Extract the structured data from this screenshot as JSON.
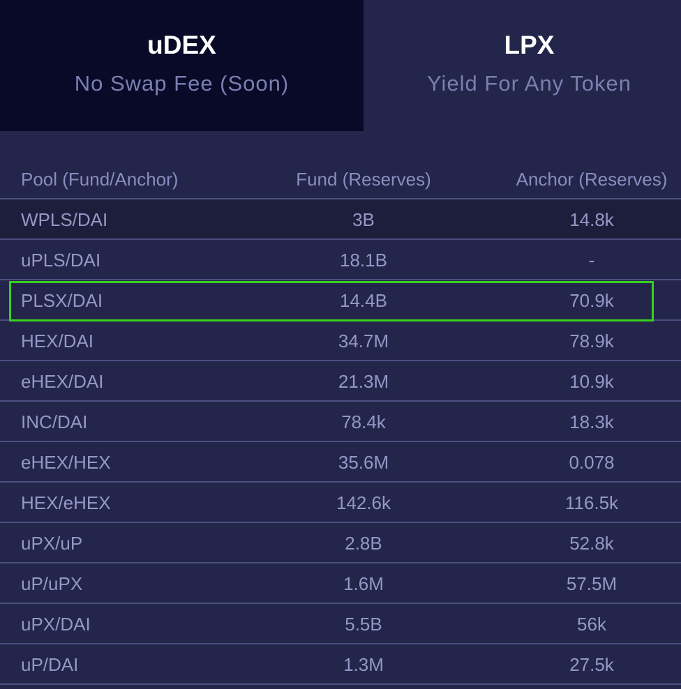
{
  "tabs": [
    {
      "title": "uDEX",
      "subtitle": "No Swap Fee (Soon)"
    },
    {
      "title": "LPX",
      "subtitle": "Yield For Any Token"
    }
  ],
  "table": {
    "columns": [
      "Pool (Fund/Anchor)",
      "Fund (Reserves)",
      "Anchor (Reserves)"
    ],
    "rows": [
      [
        "WPLS/DAI",
        "3B",
        "14.8k"
      ],
      [
        "uPLS/DAI",
        "18.1B",
        "-"
      ],
      [
        "PLSX/DAI",
        "14.4B",
        "70.9k"
      ],
      [
        "HEX/DAI",
        "34.7M",
        "78.9k"
      ],
      [
        "eHEX/DAI",
        "21.3M",
        "10.9k"
      ],
      [
        "INC/DAI",
        "78.4k",
        "18.3k"
      ],
      [
        "eHEX/HEX",
        "35.6M",
        "0.078"
      ],
      [
        "HEX/eHEX",
        "142.6k",
        "116.5k"
      ],
      [
        "uPX/uP",
        "2.8B",
        "52.8k"
      ],
      [
        "uP/uPX",
        "1.6M",
        "57.5M"
      ],
      [
        "uPX/DAI",
        "5.5B",
        "56k"
      ],
      [
        "uP/DAI",
        "1.3M",
        "27.5k"
      ]
    ]
  }
}
